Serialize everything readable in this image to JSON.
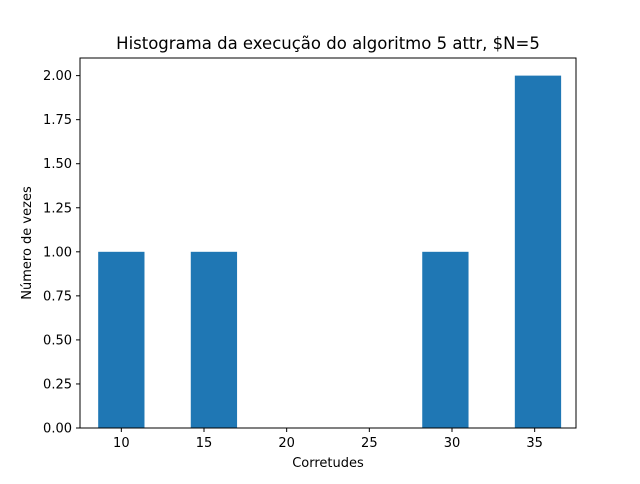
{
  "chart_data": {
    "type": "bar",
    "title": "Histograma da execução do algoritmo 5 attr, $N=5",
    "xlabel": "Corretudes",
    "ylabel": "Número de vezes",
    "x_ticks": [
      10,
      15,
      20,
      25,
      30,
      35
    ],
    "y_ticks": [
      "0.00",
      "0.25",
      "0.50",
      "0.75",
      "1.00",
      "1.25",
      "1.50",
      "1.75",
      "2.00"
    ],
    "xlim": [
      7.5,
      37.5
    ],
    "ylim": [
      0,
      2.1
    ],
    "bar_width": 2.8,
    "bars": [
      {
        "x": 10,
        "value": 1
      },
      {
        "x": 15.6,
        "value": 1
      },
      {
        "x": 29.6,
        "value": 1
      },
      {
        "x": 35.2,
        "value": 2
      }
    ],
    "bar_color": "#1f77b4",
    "grid": false,
    "legend": "none"
  }
}
